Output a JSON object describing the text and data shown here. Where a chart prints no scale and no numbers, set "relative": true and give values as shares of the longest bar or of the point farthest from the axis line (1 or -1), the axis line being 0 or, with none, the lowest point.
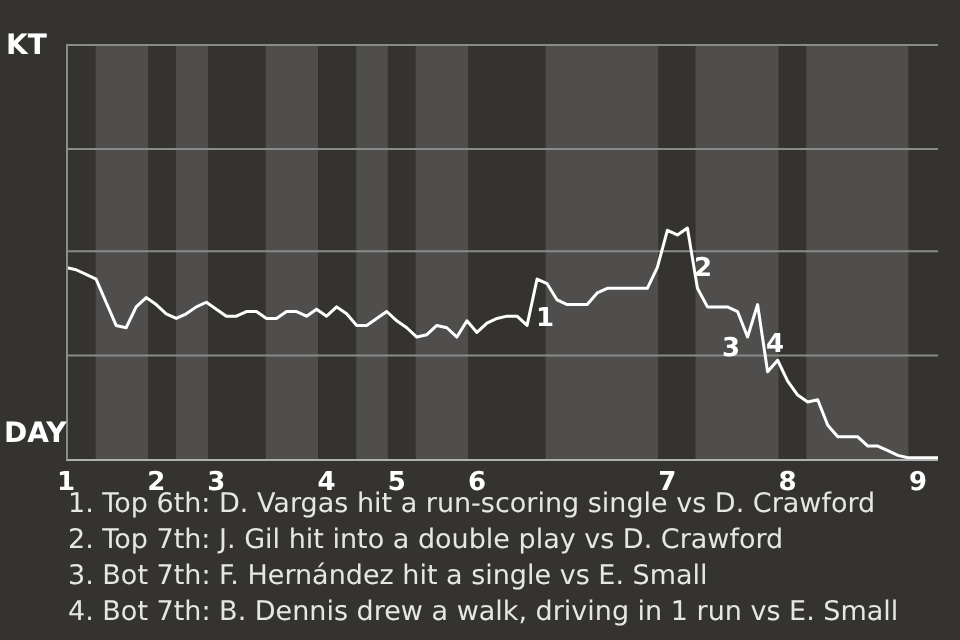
{
  "chart_data": {
    "type": "line",
    "relative": true,
    "categories": [
      "1",
      null,
      null,
      null,
      null,
      null,
      null,
      null,
      null,
      "2",
      null,
      null,
      null,
      null,
      null,
      "3",
      null,
      null,
      null,
      null,
      null,
      null,
      null,
      null,
      null,
      null,
      "4",
      null,
      null,
      null,
      null,
      null,
      null,
      "5",
      null,
      null,
      null,
      null,
      null,
      null,
      null,
      "6",
      null,
      null,
      null,
      null,
      null,
      null,
      null,
      null,
      null,
      null,
      null,
      null,
      null,
      null,
      null,
      null,
      null,
      null,
      "7",
      null,
      null,
      null,
      null,
      null,
      null,
      null,
      null,
      null,
      null,
      null,
      "8",
      null,
      null,
      null,
      null,
      null,
      null,
      null,
      null,
      null,
      null,
      null,
      null,
      "9",
      null,
      null
    ],
    "series": [
      {
        "color": "#ffffff",
        "values": [
          0.83,
          0.82,
          0.8,
          0.78,
          0.68,
          0.58,
          0.57,
          0.66,
          0.7,
          0.67,
          0.63,
          0.61,
          0.63,
          0.66,
          0.68,
          0.65,
          0.62,
          0.62,
          0.64,
          0.64,
          0.61,
          0.61,
          0.64,
          0.64,
          0.62,
          0.65,
          0.62,
          0.66,
          0.63,
          0.58,
          0.58,
          0.61,
          0.64,
          0.6,
          0.57,
          0.53,
          0.54,
          0.58,
          0.57,
          0.53,
          0.6,
          0.55,
          0.59,
          0.61,
          0.62,
          0.62,
          0.58,
          0.78,
          0.76,
          0.69,
          0.67,
          0.67,
          0.67,
          0.72,
          0.74,
          0.74,
          0.74,
          0.74,
          0.74,
          0.83,
          0.99,
          0.97,
          1.0,
          0.74,
          0.66,
          0.66,
          0.66,
          0.64,
          0.53,
          0.67,
          0.38,
          0.43,
          0.34,
          0.28,
          0.25,
          0.26,
          0.15,
          0.1,
          0.1,
          0.1,
          0.06,
          0.06,
          0.04,
          0.02,
          0.01,
          0.01,
          0.01,
          0.01
        ]
      }
    ],
    "ref_lines": [
      {
        "axis": "y",
        "value": 0.45,
        "color": "#8a8a8a"
      },
      {
        "axis": "y",
        "value": 0.9,
        "color": "#8a8a8a"
      },
      {
        "axis": "y",
        "value": 1.34,
        "color": "#8a8a8a"
      }
    ],
    "annotations": [
      "KT",
      "DAY",
      "1",
      "2",
      "3",
      "4",
      "1. Top 6th: D. Vargas hit a run-scoring single vs D. Crawford",
      "2. Top 7th: J. Gil hit into a double play vs D. Crawford",
      "3. Bot 7th: F. Hernández hit a single vs E. Small",
      "4. Bot 7th: B. Dennis drew a walk, driving in 1 run vs E. Small"
    ]
  }
}
